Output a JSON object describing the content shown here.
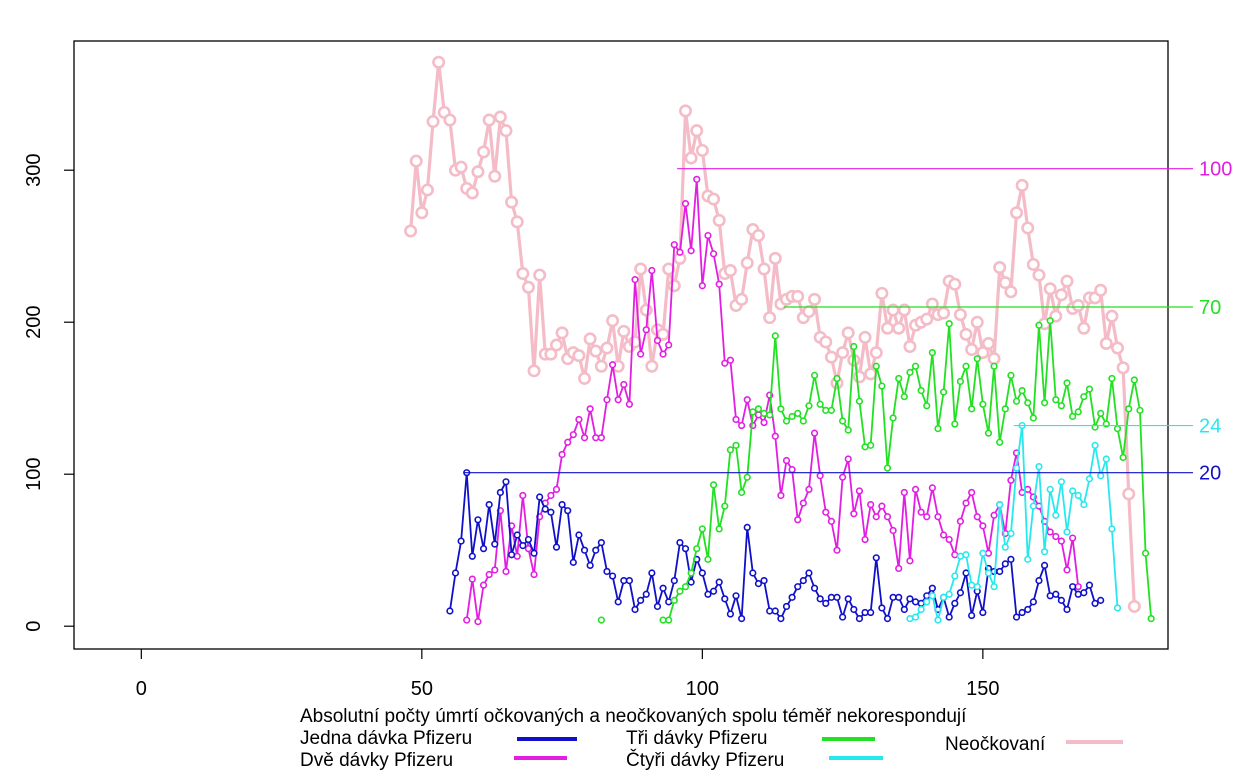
{
  "chart_data": {
    "type": "line",
    "title": "",
    "xlabel": "",
    "ylabel": "",
    "xlim": [
      -12,
      183
    ],
    "ylim": [
      -15,
      385
    ],
    "xticks": [
      "0",
      "50",
      "100",
      "150"
    ],
    "yticks": [
      "0",
      "100",
      "200",
      "300"
    ],
    "grid": false,
    "legend_position": "bottom",
    "legend_title": "Absolutní počty úmrtí očkovaných a neočkovaných spolu téměř nekorespondují",
    "colors": {
      "jedna": "#1010c8",
      "dve": "#e21ee2",
      "tri": "#22e022",
      "ctyri": "#28e8ee",
      "neockovani": "#f4bcc6"
    },
    "series": [
      {
        "key": "neockovani",
        "name": "Neočkovaní",
        "color": "#f4bcc6",
        "x_start": 48,
        "values": [
          260,
          306,
          272,
          287,
          332,
          371,
          338,
          333,
          300,
          302,
          288,
          285,
          299,
          312,
          333,
          296,
          335,
          326,
          279,
          266,
          232,
          223,
          168,
          231,
          179,
          179,
          185,
          193,
          176,
          180,
          178,
          163,
          189,
          181,
          171,
          183,
          201,
          171,
          194,
          184,
          187,
          235,
          208,
          171,
          195,
          192,
          235,
          224,
          242,
          339,
          308,
          326,
          313,
          283,
          281,
          267,
          232,
          234,
          211,
          215,
          239,
          261,
          257,
          235,
          203,
          242,
          212,
          215,
          217,
          217,
          203,
          207,
          215,
          190,
          187,
          177,
          160,
          180,
          193,
          175,
          164,
          190,
          166,
          180,
          219,
          196,
          208,
          196,
          208,
          184,
          198,
          200,
          202,
          212,
          205,
          206,
          227,
          225,
          205,
          192,
          182,
          200,
          180,
          186,
          176,
          236,
          226,
          220,
          272,
          290,
          262,
          238,
          231,
          199,
          222,
          204,
          218,
          227,
          209,
          211,
          196,
          216,
          216,
          221,
          186,
          204,
          183,
          170,
          87,
          13
        ]
      },
      {
        "key": "dve",
        "name": "Dvě dávky Pfizeru",
        "color": "#e21ee2",
        "x_start": 58,
        "values": [
          4,
          31,
          3,
          27,
          34,
          37,
          76,
          36,
          66,
          46,
          86,
          51,
          34,
          72,
          81,
          86,
          90,
          113,
          121,
          126,
          136,
          124,
          143,
          124,
          124,
          149,
          172,
          149,
          159,
          146,
          228,
          179,
          195,
          234,
          188,
          179,
          185,
          251,
          246,
          278,
          247,
          294,
          224,
          257,
          245,
          225,
          173,
          175,
          136,
          132,
          149,
          132,
          139,
          134,
          152,
          125,
          86,
          109,
          103,
          70,
          81,
          90,
          127,
          99,
          75,
          69,
          50,
          98,
          110,
          74,
          89,
          57,
          80,
          72,
          79,
          72,
          63,
          38,
          88,
          43,
          90,
          75,
          72,
          91,
          72,
          60,
          57,
          47,
          69,
          81,
          88,
          72,
          66,
          48,
          73,
          80,
          61,
          96,
          114,
          88,
          90,
          85,
          79,
          69,
          62,
          59,
          56,
          37,
          58,
          26
        ]
      },
      {
        "key": "jedna",
        "name": "Jedna dávka Pfizeru",
        "color": "#1010c8",
        "x_start": 55,
        "values": [
          10,
          35,
          56,
          101,
          46,
          70,
          51,
          80,
          54,
          88,
          95,
          47,
          60,
          53,
          57,
          48,
          85,
          77,
          75,
          52,
          80,
          76,
          42,
          60,
          50,
          40,
          50,
          55,
          36,
          33,
          16,
          30,
          30,
          11,
          17,
          21,
          35,
          13,
          25,
          16,
          30,
          55,
          51,
          29,
          44,
          35,
          21,
          23,
          29,
          18,
          8,
          20,
          5,
          65,
          35,
          28,
          30,
          10,
          10,
          5,
          13,
          19,
          26,
          30,
          35,
          25,
          18,
          15,
          19,
          19,
          6,
          18,
          11,
          5,
          9,
          9,
          45,
          12,
          5,
          19,
          19,
          11,
          18,
          16,
          15,
          20,
          25,
          11,
          19,
          6,
          15,
          22,
          35,
          7,
          23,
          9,
          38,
          36,
          36,
          41,
          44,
          6,
          9,
          11,
          16,
          30,
          40,
          20,
          21,
          17,
          11,
          26,
          21,
          22,
          27,
          15,
          17
        ]
      },
      {
        "key": "tri",
        "name": "Tři dávky Pfizeru",
        "color": "#22e022",
        "x_start": 82,
        "values": [
          4,
          null,
          null,
          null,
          null,
          null,
          null,
          null,
          null,
          null,
          null,
          4,
          4,
          17,
          23,
          26,
          35,
          51,
          64,
          44,
          93,
          64,
          79,
          116,
          119,
          88,
          98,
          141,
          143,
          140,
          139,
          191,
          143,
          135,
          138,
          140,
          135,
          145,
          165,
          146,
          142,
          142,
          163,
          135,
          129,
          184,
          148,
          118,
          119,
          171,
          158,
          104,
          137,
          163,
          151,
          167,
          171,
          155,
          145,
          180,
          130,
          154,
          199,
          133,
          161,
          171,
          143,
          176,
          146,
          127,
          171,
          121,
          143,
          165,
          148,
          155,
          147,
          137,
          198,
          147,
          201,
          149,
          145,
          160,
          138,
          141,
          151,
          156,
          131,
          140,
          133,
          163,
          130,
          111,
          143,
          162,
          142,
          48,
          5
        ]
      },
      {
        "key": "ctyri",
        "name": "Čtyři dávky Pfizeru",
        "color": "#28e8ee",
        "x_start": 137,
        "values": [
          5,
          6,
          11,
          16,
          20,
          4,
          19,
          21,
          33,
          46,
          47,
          27,
          26,
          48,
          35,
          26,
          80,
          52,
          61,
          104,
          132,
          44,
          79,
          105,
          49,
          90,
          73,
          95,
          62,
          89,
          86,
          80,
          97,
          119,
          99,
          110,
          64,
          12
        ]
      }
    ],
    "annotations": [
      {
        "label": "100",
        "y": 301,
        "x_from": 95.5,
        "color": "#e21ee2"
      },
      {
        "label": "70",
        "y": 210,
        "x_from": 114.5,
        "color": "#22e022"
      },
      {
        "label": "24",
        "y": 132,
        "x_from": 155.5,
        "color": "#28e8ee"
      },
      {
        "label": "20",
        "y": 101,
        "x_from": 57.5,
        "color": "#1010c8"
      }
    ],
    "legend": [
      {
        "label": "Jedna dávka Pfizeru",
        "key": "jedna"
      },
      {
        "label": "Dvě dávky Pfizeru",
        "key": "dve"
      },
      {
        "label": "Tři dávky Pfizeru",
        "key": "tri"
      },
      {
        "label": "Čtyři dávky Pfizeru",
        "key": "ctyri"
      },
      {
        "label": "Neočkovaní",
        "key": "neockovani"
      }
    ]
  }
}
